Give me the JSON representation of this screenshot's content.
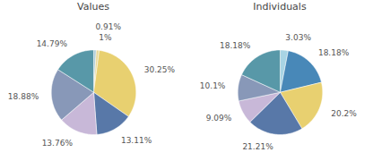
{
  "chart_data": [
    {
      "type": "pie",
      "title": "Values",
      "values": [
        0.91,
        1.0,
        30.25,
        13.11,
        13.76,
        18.88,
        14.79
      ],
      "value_labels": [
        "0.91%",
        "1%",
        "30.25%",
        "13.11%",
        "13.76%",
        "18.88%",
        "14.79%"
      ],
      "colors": [
        "#b0cdd8",
        "#e8d898",
        "#e8d070",
        "#5878a8",
        "#c8b8d8",
        "#8898b8",
        "#5898a8"
      ],
      "data_labels": true
    },
    {
      "type": "pie",
      "title": "Individuals",
      "values": [
        3.03,
        18.18,
        20.2,
        21.21,
        9.09,
        10.1,
        18.18
      ],
      "value_labels": [
        "3.03%",
        "18.18%",
        "20.2%",
        "21.21%",
        "9.09%",
        "10.1%",
        "18.18%"
      ],
      "colors": [
        "#a8d4e4",
        "#4888b8",
        "#e8d070",
        "#5878a8",
        "#c8b8d8",
        "#8898b8",
        "#5898a8"
      ],
      "data_labels": true
    }
  ]
}
